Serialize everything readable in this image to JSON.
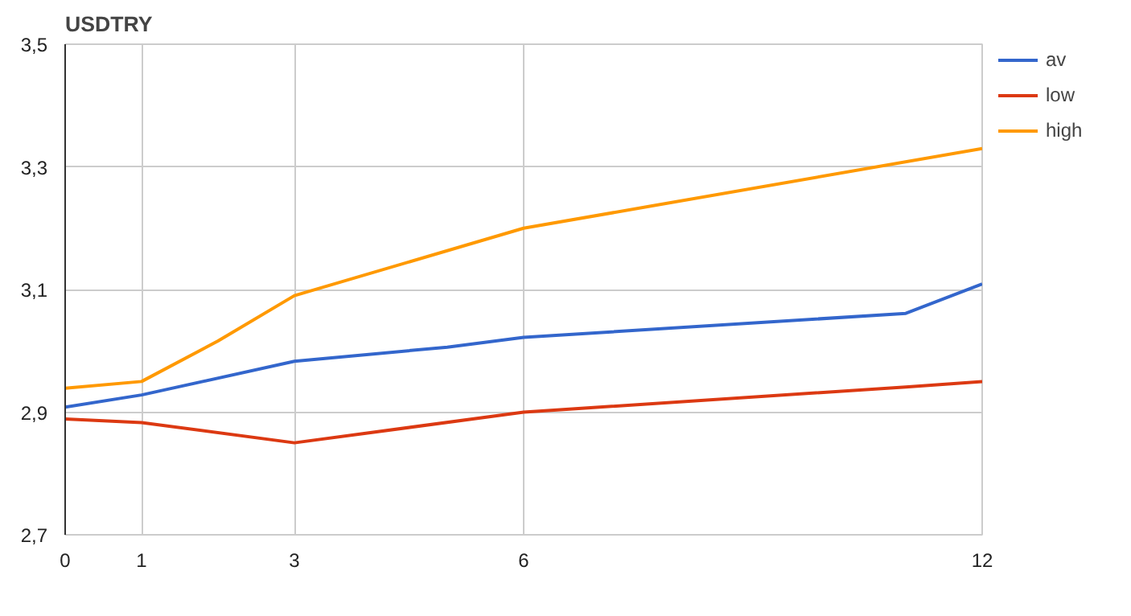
{
  "chart_data": {
    "type": "line",
    "title": "USDTRY",
    "xlim": [
      0,
      12
    ],
    "xticks": [
      0,
      1,
      3,
      6,
      12
    ],
    "ylim": [
      2.7,
      3.5
    ],
    "yticks": [
      {
        "value": 2.7,
        "label": "2,7"
      },
      {
        "value": 2.9,
        "label": "2,9"
      },
      {
        "value": 3.1,
        "label": "3,1"
      },
      {
        "value": 3.3,
        "label": "3,3"
      },
      {
        "value": 3.5,
        "label": "3,5"
      }
    ],
    "grid": true,
    "legend": "right",
    "marker": "none",
    "line_style": "solid",
    "series": [
      {
        "name": "av",
        "color": "#3366cc",
        "x": [
          0,
          1,
          3,
          5,
          6,
          11,
          12
        ],
        "values": [
          2.908,
          2.928,
          2.983,
          3.006,
          3.022,
          3.061,
          3.109
        ]
      },
      {
        "name": "low",
        "color": "#dc3912",
        "x": [
          0,
          1,
          3,
          6,
          11,
          12
        ],
        "values": [
          2.889,
          2.883,
          2.85,
          2.9,
          2.941,
          2.95
        ]
      },
      {
        "name": "high",
        "color": "#ff9900",
        "x": [
          0,
          1,
          2,
          3,
          6,
          12
        ],
        "values": [
          2.939,
          2.95,
          3.016,
          3.09,
          3.2,
          3.33
        ]
      }
    ]
  }
}
